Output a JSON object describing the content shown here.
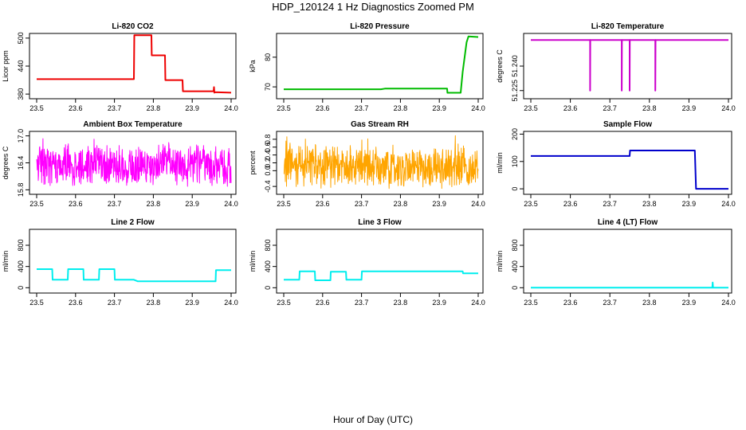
{
  "figure": {
    "title": "HDP_120124  1 Hz Diagnostics Zoomed PM",
    "xlabel": "Hour of Day (UTC)"
  },
  "chart_data": [
    {
      "type": "line",
      "title": "Li-820 CO2",
      "xlabel": "",
      "ylabel": "Licor ppm",
      "color": "#ee0000",
      "xlim": [
        23.5,
        24.0
      ],
      "ylim": [
        370,
        510
      ],
      "xticks": [
        "23.5",
        "23.6",
        "23.7",
        "23.8",
        "23.9",
        "24.0"
      ],
      "yticks": [
        "380",
        "440",
        "500"
      ],
      "x": [
        23.5,
        23.75,
        23.751,
        23.795,
        23.796,
        23.83,
        23.831,
        23.875,
        23.876,
        23.955,
        23.956,
        23.957,
        23.958,
        24.0
      ],
      "y": [
        412,
        412,
        506,
        506,
        463,
        463,
        410,
        410,
        386,
        386,
        395,
        383,
        384,
        383
      ]
    },
    {
      "type": "line",
      "title": "Li-820 Pressure",
      "xlabel": "",
      "ylabel": "kPa",
      "color": "#00bb00",
      "xlim": [
        23.5,
        24.0
      ],
      "ylim": [
        66,
        88
      ],
      "xticks": [
        "23.5",
        "23.6",
        "23.7",
        "23.8",
        "23.9",
        "24.0"
      ],
      "yticks": [
        "70",
        "80"
      ],
      "x": [
        23.5,
        23.75,
        23.76,
        23.92,
        23.921,
        23.955,
        23.96,
        23.97,
        23.975,
        24.0
      ],
      "y": [
        69.2,
        69.2,
        69.4,
        69.4,
        68.0,
        68.0,
        75.0,
        85.0,
        87.0,
        86.8
      ]
    },
    {
      "type": "line",
      "title": "Li-820 Temperature",
      "xlabel": "",
      "ylabel": "degrees C",
      "color": "#cc00cc",
      "xlim": [
        23.5,
        24.0
      ],
      "ylim": [
        51.22,
        51.26
      ],
      "xticks": [
        "23.5",
        "23.6",
        "23.7",
        "23.8",
        "23.9",
        "24.0"
      ],
      "yticks": [
        "51.225",
        "51.240"
      ],
      "baseline": 51.256,
      "drop_to": 51.225,
      "drops": [
        23.65,
        23.73,
        23.75,
        23.815
      ]
    },
    {
      "type": "line",
      "title": "Ambient Box Temperature",
      "xlabel": "",
      "ylabel": "degrees C",
      "color": "#ff00ff",
      "xlim": [
        23.5,
        24.0
      ],
      "ylim": [
        15.7,
        17.1
      ],
      "xticks": [
        "23.5",
        "23.6",
        "23.7",
        "23.8",
        "23.9",
        "24.0"
      ],
      "yticks": [
        "15.8",
        "16.4",
        "17.0"
      ],
      "noise": {
        "mean": 16.35,
        "min": 15.8,
        "max": 17.0
      }
    },
    {
      "type": "line",
      "title": "Gas Stream RH",
      "xlabel": "",
      "ylabel": "percent",
      "color": "#ffa500",
      "xlim": [
        23.5,
        24.0
      ],
      "ylim": [
        -0.6,
        1.0
      ],
      "xticks": [
        "23.5",
        "23.6",
        "23.7",
        "23.8",
        "23.9",
        "24.0"
      ],
      "yticks": [
        "-0.4",
        "0.0",
        "0.2",
        "0.4",
        "0.6",
        "0.8"
      ],
      "noise": {
        "mean": 0.1,
        "min": -0.5,
        "max": 0.9
      }
    },
    {
      "type": "line",
      "title": "Sample Flow",
      "xlabel": "",
      "ylabel": "ml/min",
      "color": "#0000cc",
      "xlim": [
        23.5,
        24.0
      ],
      "ylim": [
        -20,
        210
      ],
      "xticks": [
        "23.5",
        "23.6",
        "23.7",
        "23.8",
        "23.9",
        "24.0"
      ],
      "yticks": [
        "0",
        "100",
        "200"
      ],
      "x": [
        23.5,
        23.75,
        23.751,
        23.915,
        23.918,
        24.0
      ],
      "y": [
        120,
        120,
        140,
        140,
        0,
        0
      ]
    },
    {
      "type": "line",
      "title": "Line 2 Flow",
      "xlabel": "",
      "ylabel": "ml/min",
      "color": "#00eeee",
      "xlim": [
        23.5,
        24.0
      ],
      "ylim": [
        -100,
        1100
      ],
      "xticks": [
        "23.5",
        "23.6",
        "23.7",
        "23.8",
        "23.9",
        "24.0"
      ],
      "yticks": [
        "0",
        "400",
        "800"
      ],
      "x": [
        23.5,
        23.54,
        23.541,
        23.58,
        23.581,
        23.62,
        23.621,
        23.66,
        23.661,
        23.7,
        23.701,
        23.75,
        23.76,
        23.96,
        23.961,
        24.0
      ],
      "y": [
        350,
        350,
        150,
        150,
        350,
        350,
        150,
        150,
        350,
        350,
        150,
        150,
        120,
        120,
        330,
        330
      ]
    },
    {
      "type": "line",
      "title": "Line 3 Flow",
      "xlabel": "",
      "ylabel": "ml/min",
      "color": "#00eeee",
      "xlim": [
        23.5,
        24.0
      ],
      "ylim": [
        -100,
        1100
      ],
      "xticks": [
        "23.5",
        "23.6",
        "23.7",
        "23.8",
        "23.9",
        "24.0"
      ],
      "yticks": [
        "0",
        "400",
        "800"
      ],
      "x": [
        23.5,
        23.54,
        23.541,
        23.58,
        23.581,
        23.62,
        23.621,
        23.66,
        23.661,
        23.7,
        23.701,
        23.96,
        23.961,
        24.0
      ],
      "y": [
        150,
        150,
        310,
        310,
        140,
        140,
        300,
        300,
        150,
        150,
        310,
        310,
        270,
        270
      ]
    },
    {
      "type": "line",
      "title": "Line 4 (LT) Flow",
      "xlabel": "",
      "ylabel": "ml/min",
      "color": "#00eeee",
      "xlim": [
        23.5,
        24.0
      ],
      "ylim": [
        -100,
        1100
      ],
      "xticks": [
        "23.5",
        "23.6",
        "23.7",
        "23.8",
        "23.9",
        "24.0"
      ],
      "yticks": [
        "0",
        "400",
        "800"
      ],
      "x": [
        23.5,
        23.959,
        23.96,
        23.961,
        24.0
      ],
      "y": [
        0,
        0,
        100,
        0,
        0
      ]
    }
  ]
}
